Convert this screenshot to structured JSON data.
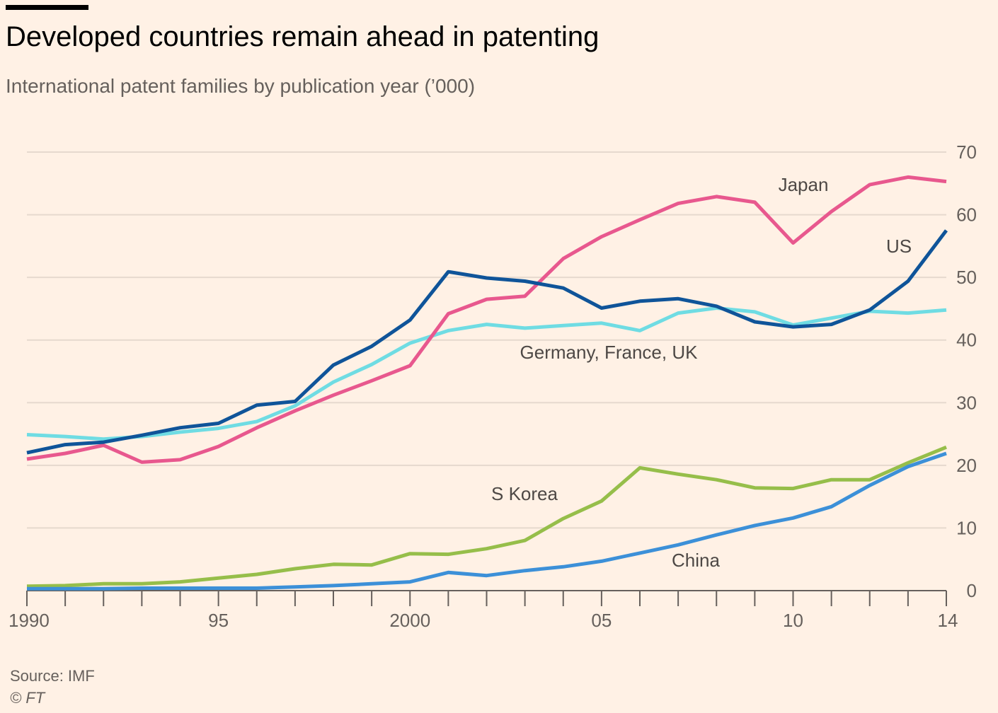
{
  "header": {
    "title": "Developed countries remain ahead in patenting",
    "subtitle": "International patent families by publication year (’000)"
  },
  "footer": {
    "source": "Source: IMF",
    "copyright": "© FT"
  },
  "chart_data": {
    "type": "line",
    "title": "Developed countries remain ahead in patenting",
    "subtitle": "International patent families by publication year (’000)",
    "xlabel": "",
    "ylabel": "",
    "xlim": [
      1990,
      2014
    ],
    "ylim": [
      0,
      70
    ],
    "x_ticks": [
      {
        "value": 1990,
        "label": "1990"
      },
      {
        "value": 1995,
        "label": "95"
      },
      {
        "value": 2000,
        "label": "2000"
      },
      {
        "value": 2005,
        "label": "05"
      },
      {
        "value": 2010,
        "label": "10"
      },
      {
        "value": 2014,
        "label": "14"
      }
    ],
    "y_ticks": [
      0,
      10,
      20,
      30,
      40,
      50,
      60,
      70
    ],
    "grid": true,
    "legend": "inline labels",
    "x": [
      1990,
      1991,
      1992,
      1993,
      1994,
      1995,
      1996,
      1997,
      1998,
      1999,
      2000,
      2001,
      2002,
      2003,
      2004,
      2005,
      2006,
      2007,
      2008,
      2009,
      2010,
      2011,
      2012,
      2013,
      2014
    ],
    "series": [
      {
        "name": "Japan",
        "color": "#E8588E",
        "values": [
          21.0,
          21.9,
          23.2,
          20.5,
          20.9,
          23.0,
          26.0,
          28.7,
          31.2,
          33.5,
          35.9,
          44.2,
          46.5,
          47.0,
          53.0,
          56.5,
          59.2,
          61.8,
          62.9,
          62.0,
          55.5,
          60.5,
          64.8,
          66.0,
          65.3
        ]
      },
      {
        "name": "US",
        "color": "#0F5499",
        "values": [
          22.0,
          23.3,
          23.7,
          24.8,
          26.0,
          26.7,
          29.6,
          30.2,
          36.0,
          39.0,
          43.2,
          50.9,
          49.9,
          49.4,
          48.3,
          45.1,
          46.2,
          46.6,
          45.4,
          42.9,
          42.1,
          42.5,
          44.8,
          49.4,
          57.5
        ]
      },
      {
        "name": "Germany, France, UK",
        "color": "#6FDCE3",
        "values": [
          24.9,
          24.6,
          24.2,
          24.6,
          25.3,
          25.9,
          27.0,
          29.5,
          33.3,
          36.1,
          39.5,
          41.5,
          42.5,
          41.9,
          42.3,
          42.7,
          41.5,
          44.3,
          45.1,
          44.5,
          42.4,
          43.5,
          44.6,
          44.3,
          44.8
        ]
      },
      {
        "name": "S Korea",
        "color": "#96BE4A",
        "values": [
          0.7,
          0.8,
          1.1,
          1.1,
          1.4,
          2.0,
          2.6,
          3.5,
          4.2,
          4.1,
          5.9,
          5.8,
          6.7,
          8.0,
          11.5,
          14.3,
          19.6,
          18.6,
          17.7,
          16.4,
          16.3,
          17.7,
          17.7,
          20.4,
          22.9
        ]
      },
      {
        "name": "China",
        "color": "#3C90D8",
        "values": [
          0.3,
          0.3,
          0.3,
          0.4,
          0.4,
          0.4,
          0.4,
          0.6,
          0.8,
          1.1,
          1.4,
          2.9,
          2.4,
          3.2,
          3.8,
          4.7,
          6.0,
          7.3,
          8.9,
          10.4,
          11.6,
          13.4,
          16.8,
          19.8,
          21.9
        ]
      }
    ],
    "annotations": [
      {
        "text": "Japan",
        "series": "Japan"
      },
      {
        "text": "US",
        "series": "US"
      },
      {
        "text": "Germany, France, UK",
        "series": "Germany, France, UK"
      },
      {
        "text": "S Korea",
        "series": "S Korea"
      },
      {
        "text": "China",
        "series": "China"
      }
    ]
  }
}
